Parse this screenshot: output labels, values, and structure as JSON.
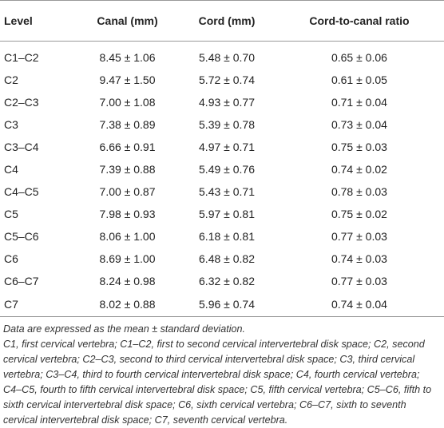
{
  "table": {
    "headers": [
      "Level",
      "Canal (mm)",
      "Cord (mm)",
      "Cord-to-canal ratio"
    ],
    "rows": [
      [
        "C1–C2",
        "8.45 ± 1.06",
        "5.48 ± 0.70",
        "0.65 ± 0.06"
      ],
      [
        "C2",
        "9.47 ± 1.50",
        "5.72 ± 0.74",
        "0.61 ± 0.05"
      ],
      [
        "C2–C3",
        "7.00 ± 1.08",
        "4.93 ± 0.77",
        "0.71 ± 0.04"
      ],
      [
        "C3",
        "7.38 ± 0.89",
        "5.39 ± 0.78",
        "0.73 ± 0.04"
      ],
      [
        "C3–C4",
        "6.66 ± 0.91",
        "4.97 ± 0.71",
        "0.75 ± 0.03"
      ],
      [
        "C4",
        "7.39 ± 0.88",
        "5.49 ± 0.76",
        "0.74 ± 0.02"
      ],
      [
        "C4–C5",
        "7.00 ± 0.87",
        "5.43 ± 0.71",
        "0.78 ± 0.03"
      ],
      [
        "C5",
        "7.98 ± 0.93",
        "5.97 ± 0.81",
        "0.75 ± 0.02"
      ],
      [
        "C5–C6",
        "8.06 ± 1.00",
        "6.18 ± 0.81",
        "0.77 ± 0.03"
      ],
      [
        "C6",
        "8.69 ± 1.00",
        "6.48 ± 0.82",
        "0.74 ± 0.03"
      ],
      [
        "C6–C7",
        "8.24 ± 0.98",
        "6.32 ± 0.82",
        "0.77 ± 0.03"
      ],
      [
        "C7",
        "8.02 ± 0.88",
        "5.96 ± 0.74",
        "0.74 ± 0.04"
      ]
    ]
  },
  "notes": [
    "Data are expressed as the mean ± standard deviation.",
    "C1, first cervical vertebra; C1–C2, first to second cervical intervertebral disk space; C2, second cervical vertebra; C2–C3, second to third cervical intervertebral disk space; C3, third cervical vertebra; C3–C4, third to fourth cervical intervertebral disk space; C4, fourth cervical vertebra; C4–C5, fourth to fifth cervical intervertebral disk space; C5, fifth cervical vertebra; C5–C6, fifth to sixth cervical intervertebral disk space; C6, sixth cervical vertebra; C6–C7, sixth to seventh cervical intervertebral disk space; C7, seventh cervical vertebra."
  ]
}
